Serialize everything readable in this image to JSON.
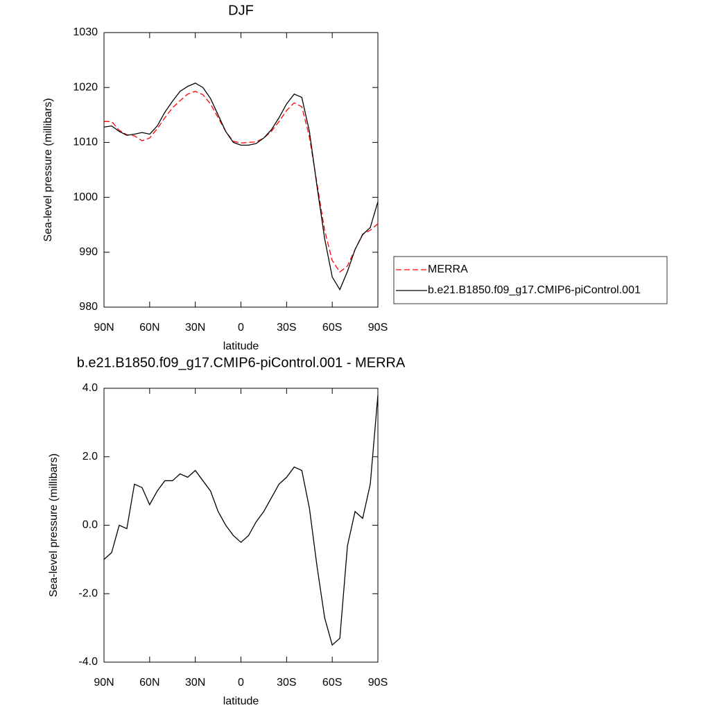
{
  "chart_data": [
    {
      "type": "line",
      "title": "DJF",
      "xlabel": "latitude",
      "ylabel": "Sea-level pressure (millibars)",
      "x": [
        90,
        85,
        80,
        75,
        70,
        65,
        60,
        55,
        50,
        45,
        40,
        35,
        30,
        25,
        20,
        15,
        10,
        5,
        0,
        -5,
        -10,
        -15,
        -20,
        -25,
        -30,
        -35,
        -40,
        -45,
        -50,
        -55,
        -60,
        -65,
        -70,
        -75,
        -80,
        -85,
        -90
      ],
      "xlim": [
        90,
        -90
      ],
      "xticks": [
        {
          "value": 90,
          "label": "90N"
        },
        {
          "value": 60,
          "label": "60N"
        },
        {
          "value": 30,
          "label": "30N"
        },
        0,
        {
          "value": -30,
          "label": "30S"
        },
        {
          "value": -60,
          "label": "60S"
        },
        {
          "value": -90,
          "label": "90S"
        }
      ],
      "ylim": [
        980,
        1030
      ],
      "yticks": [
        980,
        990,
        1000,
        1010,
        1020,
        1030
      ],
      "series": [
        {
          "name": "MERRA",
          "color": "#ff0000",
          "dashed": true,
          "values": [
            1013.8,
            1013.8,
            1012.2,
            1011.4,
            1011.2,
            1010.3,
            1010.8,
            1012.5,
            1014.5,
            1016.3,
            1017.6,
            1018.8,
            1019.3,
            1018.7,
            1017,
            1014.5,
            1012,
            1010.2,
            1009.9,
            1010,
            1010.1,
            1010.8,
            1012,
            1013.8,
            1015.8,
            1017.2,
            1016.5,
            1011,
            1002.5,
            994,
            988.5,
            986.4,
            987.5,
            990.5,
            993.3,
            994,
            995.2
          ]
        },
        {
          "name": "b.e21.B1850.f09_g17.CMIP6-piControl.001",
          "color": "#000000",
          "dashed": false,
          "values": [
            1012.8,
            1013,
            1012,
            1011.3,
            1011.5,
            1011.8,
            1011.5,
            1013,
            1015.5,
            1017.5,
            1019.3,
            1020.2,
            1020.8,
            1020,
            1018,
            1015,
            1012,
            1010,
            1009.5,
            1009.5,
            1009.8,
            1010.8,
            1012.3,
            1014.5,
            1017,
            1018.8,
            1018.2,
            1012,
            1002,
            992.5,
            985.5,
            983.2,
            986.5,
            990.5,
            993.2,
            994.5,
            999.2
          ]
        }
      ]
    },
    {
      "type": "line",
      "title": "b.e21.B1850.f09_g17.CMIP6-piControl.001 - MERRA",
      "xlabel": "latitude",
      "ylabel": "Sea-level pressure (millibars)",
      "x": [
        90,
        85,
        80,
        75,
        70,
        65,
        60,
        55,
        50,
        45,
        40,
        35,
        30,
        25,
        20,
        15,
        10,
        5,
        0,
        -5,
        -10,
        -15,
        -20,
        -25,
        -30,
        -35,
        -40,
        -45,
        -50,
        -55,
        -60,
        -65,
        -70,
        -75,
        -80,
        -85,
        -90
      ],
      "xlim": [
        90,
        -90
      ],
      "xticks": [
        {
          "value": 90,
          "label": "90N"
        },
        {
          "value": 60,
          "label": "60N"
        },
        {
          "value": 30,
          "label": "30N"
        },
        0,
        {
          "value": -30,
          "label": "30S"
        },
        {
          "value": -60,
          "label": "60S"
        },
        {
          "value": -90,
          "label": "90S"
        }
      ],
      "ylim": [
        -4,
        4
      ],
      "yticks": [
        {
          "value": -4,
          "label": "-4.0"
        },
        {
          "value": -2,
          "label": "-2.0"
        },
        {
          "value": 0,
          "label": "0.0"
        },
        {
          "value": 2,
          "label": "2.0"
        },
        {
          "value": 4,
          "label": "4.0"
        }
      ],
      "series": [
        {
          "color": "#000000",
          "dashed": false,
          "values": [
            -1.0,
            -0.8,
            0.0,
            -0.1,
            1.2,
            1.1,
            0.6,
            1.0,
            1.3,
            1.3,
            1.5,
            1.4,
            1.6,
            1.3,
            1.0,
            0.4,
            0.0,
            -0.3,
            -0.5,
            -0.3,
            0.1,
            0.4,
            0.8,
            1.2,
            1.4,
            1.7,
            1.6,
            0.5,
            -1.2,
            -2.7,
            -3.5,
            -3.3,
            -0.6,
            0.4,
            0.2,
            1.2,
            3.8
          ]
        }
      ]
    }
  ]
}
